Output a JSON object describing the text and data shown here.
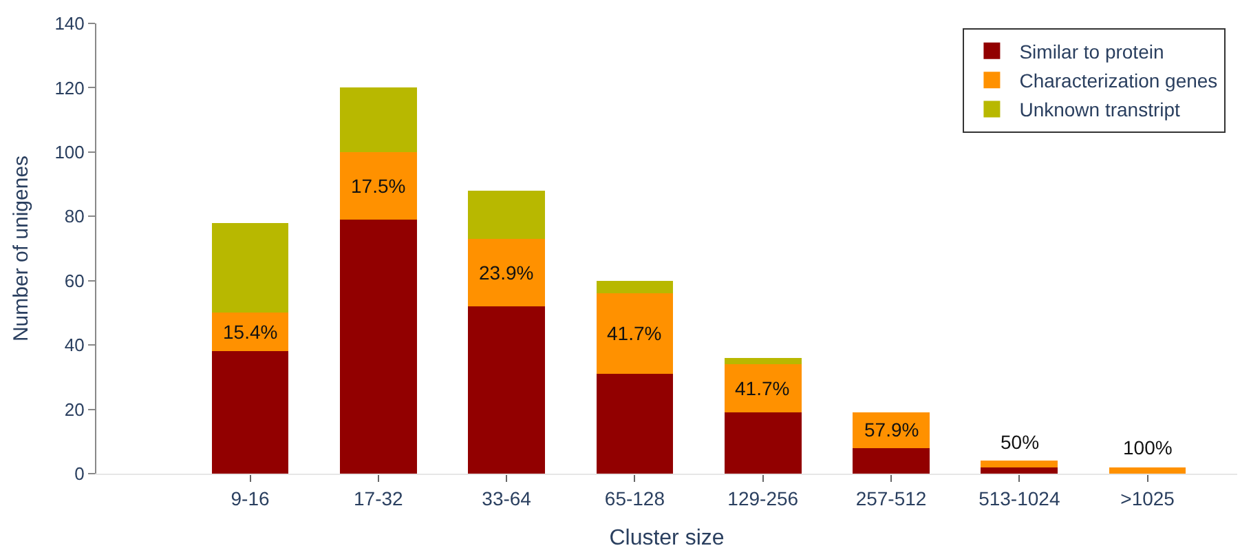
{
  "chart_data": {
    "type": "bar",
    "stacked": true,
    "xlabel": "Cluster size",
    "ylabel": "Number of unigenes",
    "categories": [
      "9-16",
      "17-32",
      "33-64",
      "65-128",
      "129-256",
      "257-512",
      "513-1024",
      ">1025"
    ],
    "series": [
      {
        "name": "Similar to protein",
        "color": "#920000",
        "values": [
          38,
          79,
          52,
          31,
          19,
          8,
          2,
          0
        ]
      },
      {
        "name": "Characterization genes",
        "color": "#ff9100",
        "values": [
          12,
          21,
          21,
          25,
          15,
          11,
          2,
          2
        ]
      },
      {
        "name": "Unknown transtript",
        "color": "#b8b800",
        "values": [
          28,
          20,
          15,
          4,
          2,
          0,
          0,
          0
        ]
      }
    ],
    "ylim": [
      0,
      140
    ],
    "yticks": [
      0,
      20,
      40,
      60,
      80,
      100,
      120,
      140
    ],
    "legend": "top right",
    "annotations": [
      "15.4%",
      "17.5%",
      "23.9%",
      "41.7%",
      "41.7%",
      "57.9%",
      "50%",
      "100%"
    ]
  }
}
